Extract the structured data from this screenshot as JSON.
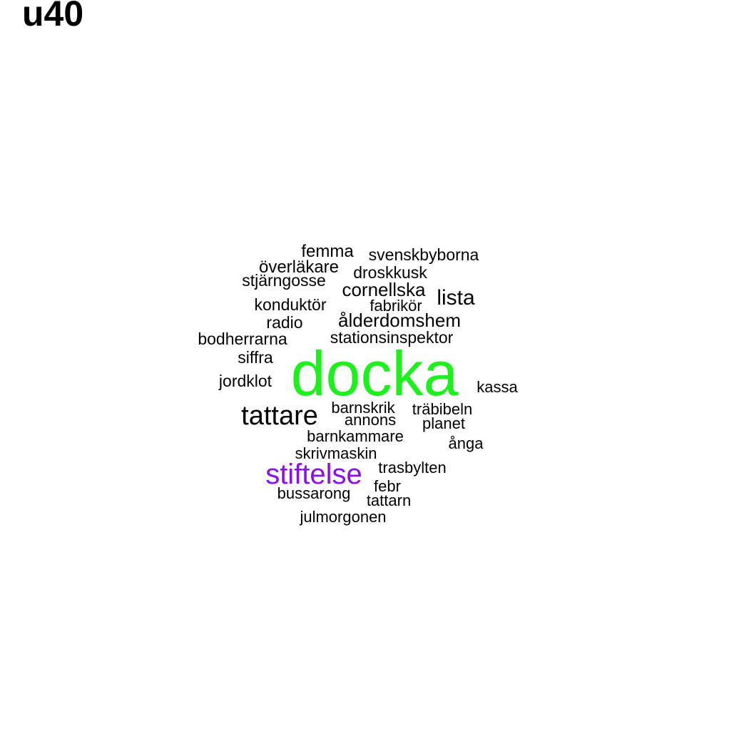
{
  "title": "u40",
  "colors": {
    "default_word": "#000000",
    "docka": "#1ef01e",
    "stiftelse": "#8b0fe8",
    "background": "#ffffff"
  },
  "words": {
    "docka": "docka",
    "stiftelse": "stiftelse",
    "tattare": "tattare",
    "lista": "lista",
    "alderdomshem": "ålderdomshem",
    "cornellska": "cornellska",
    "femma": "femma",
    "svenskbyborna": "svenskbyborna",
    "overlakare": "överläkare",
    "droskkusk": "droskkusk",
    "stjarngosse": "stjärngosse",
    "konduktor": "konduktör",
    "fabrikor": "fabrikör",
    "radio": "radio",
    "bodherrarna": "bodherrarna",
    "stationsinspektor": "stationsinspektor",
    "siffra": "siffra",
    "jordklot": "jordklot",
    "kassa": "kassa",
    "barnskrik": "barnskrik",
    "trabibeln": "träbibeln",
    "annons": "annons",
    "planet": "planet",
    "barnkammare": "barnkammare",
    "anga": "ånga",
    "skrivmaskin": "skrivmaskin",
    "trasbylten": "trasbylten",
    "febr": "febr",
    "bussarong": "bussarong",
    "tattarn": "tattarn",
    "julmorgonen": "julmorgonen"
  }
}
